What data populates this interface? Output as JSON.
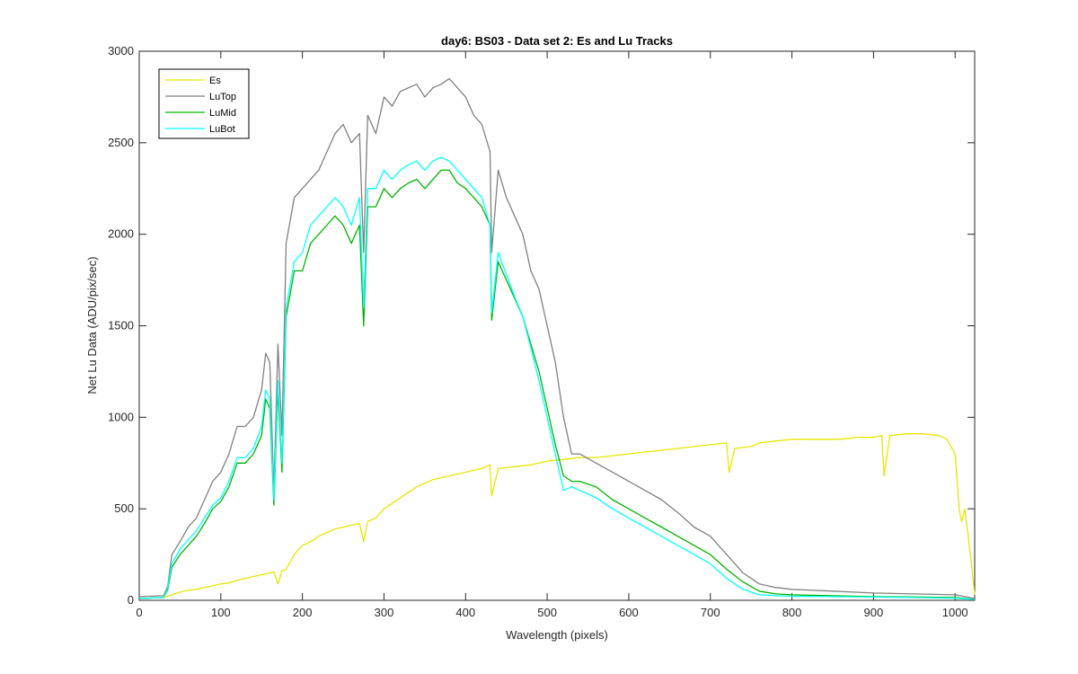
{
  "chart_data": {
    "type": "line",
    "title": "day6: BS03 - Data set 2: Es and Lu Tracks",
    "xlabel": "Wavelength (pixels)",
    "ylabel": "Net Lu Data (ADU/pix/sec)",
    "xlim": [
      0,
      1024
    ],
    "ylim": [
      0,
      3000
    ],
    "xticks": [
      0,
      100,
      200,
      300,
      400,
      500,
      600,
      700,
      800,
      900,
      1000
    ],
    "yticks": [
      0,
      500,
      1000,
      1500,
      2000,
      2500,
      3000
    ],
    "grid": false,
    "legend_position": "top-left",
    "series": [
      {
        "name": "Es",
        "color": "#e6e600",
        "x": [
          0,
          30,
          40,
          50,
          60,
          70,
          80,
          90,
          100,
          110,
          120,
          130,
          140,
          150,
          160,
          165,
          170,
          175,
          180,
          190,
          200,
          210,
          220,
          230,
          240,
          250,
          260,
          270,
          275,
          280,
          290,
          300,
          320,
          340,
          360,
          380,
          400,
          420,
          430,
          432,
          440,
          460,
          480,
          500,
          520,
          540,
          560,
          580,
          600,
          620,
          640,
          660,
          680,
          700,
          720,
          723,
          730,
          750,
          760,
          780,
          800,
          820,
          840,
          860,
          880,
          900,
          910,
          913,
          920,
          940,
          960,
          980,
          990,
          1000,
          1005,
          1008,
          1012,
          1020,
          1024
        ],
        "values": [
          10,
          15,
          30,
          45,
          55,
          60,
          70,
          80,
          90,
          95,
          110,
          120,
          130,
          140,
          150,
          155,
          90,
          160,
          170,
          250,
          300,
          320,
          350,
          370,
          390,
          400,
          410,
          420,
          320,
          430,
          450,
          500,
          560,
          620,
          660,
          680,
          700,
          720,
          740,
          570,
          720,
          730,
          740,
          760,
          770,
          780,
          780,
          790,
          800,
          810,
          820,
          830,
          840,
          850,
          860,
          700,
          830,
          840,
          860,
          870,
          880,
          880,
          880,
          880,
          890,
          890,
          900,
          680,
          900,
          910,
          910,
          900,
          880,
          800,
          500,
          430,
          500,
          200,
          30
        ]
      },
      {
        "name": "LuTop",
        "color": "#808080",
        "x": [
          0,
          30,
          35,
          40,
          50,
          60,
          70,
          80,
          90,
          100,
          110,
          120,
          130,
          140,
          150,
          155,
          160,
          165,
          170,
          175,
          180,
          190,
          200,
          210,
          220,
          230,
          240,
          250,
          260,
          270,
          275,
          280,
          290,
          300,
          310,
          320,
          330,
          340,
          350,
          360,
          370,
          380,
          390,
          400,
          410,
          420,
          430,
          432,
          440,
          450,
          460,
          470,
          480,
          490,
          500,
          510,
          520,
          530,
          540,
          560,
          580,
          600,
          620,
          640,
          660,
          680,
          700,
          720,
          740,
          760,
          780,
          800,
          850,
          900,
          950,
          1000,
          1024
        ],
        "values": [
          20,
          25,
          80,
          250,
          320,
          400,
          450,
          550,
          650,
          700,
          800,
          950,
          950,
          1000,
          1150,
          1350,
          1300,
          600,
          1400,
          900,
          1950,
          2200,
          2250,
          2300,
          2350,
          2450,
          2550,
          2600,
          2500,
          2550,
          1900,
          2650,
          2550,
          2750,
          2700,
          2780,
          2800,
          2820,
          2750,
          2800,
          2820,
          2850,
          2800,
          2750,
          2650,
          2600,
          2450,
          1900,
          2350,
          2200,
          2100,
          2000,
          1800,
          1700,
          1500,
          1300,
          1000,
          800,
          800,
          750,
          700,
          650,
          600,
          550,
          480,
          400,
          350,
          250,
          150,
          90,
          70,
          60,
          50,
          40,
          35,
          30,
          10
        ]
      },
      {
        "name": "LuMid",
        "color": "#00b300",
        "x": [
          0,
          30,
          35,
          40,
          50,
          60,
          70,
          80,
          90,
          100,
          110,
          120,
          130,
          140,
          150,
          155,
          160,
          165,
          170,
          175,
          180,
          190,
          200,
          210,
          220,
          230,
          240,
          250,
          260,
          270,
          275,
          280,
          290,
          300,
          310,
          320,
          330,
          340,
          350,
          360,
          370,
          380,
          390,
          400,
          410,
          420,
          430,
          432,
          440,
          450,
          460,
          470,
          480,
          490,
          500,
          510,
          520,
          530,
          540,
          560,
          580,
          600,
          620,
          640,
          660,
          680,
          700,
          720,
          740,
          760,
          780,
          800,
          850,
          900,
          950,
          1000,
          1024
        ],
        "values": [
          10,
          15,
          60,
          180,
          250,
          300,
          350,
          420,
          500,
          540,
          620,
          750,
          750,
          800,
          900,
          1100,
          1050,
          520,
          1150,
          700,
          1550,
          1800,
          1800,
          1950,
          2000,
          2050,
          2100,
          2050,
          1950,
          2050,
          1500,
          2150,
          2150,
          2250,
          2200,
          2250,
          2280,
          2300,
          2250,
          2300,
          2350,
          2350,
          2280,
          2250,
          2200,
          2150,
          2050,
          1530,
          1850,
          1750,
          1650,
          1550,
          1400,
          1250,
          1050,
          850,
          680,
          650,
          650,
          620,
          550,
          500,
          450,
          400,
          350,
          300,
          250,
          170,
          100,
          50,
          35,
          30,
          25,
          20,
          18,
          15,
          5
        ]
      },
      {
        "name": "LuBot",
        "color": "#00ffff",
        "x": [
          0,
          30,
          35,
          40,
          50,
          60,
          70,
          80,
          90,
          100,
          110,
          120,
          130,
          140,
          150,
          155,
          160,
          165,
          170,
          175,
          180,
          190,
          200,
          210,
          220,
          230,
          240,
          250,
          260,
          270,
          275,
          280,
          290,
          300,
          310,
          320,
          330,
          340,
          350,
          360,
          370,
          380,
          390,
          400,
          410,
          420,
          430,
          432,
          440,
          450,
          460,
          470,
          480,
          490,
          500,
          510,
          520,
          530,
          540,
          560,
          580,
          600,
          620,
          640,
          660,
          680,
          700,
          720,
          740,
          760,
          780,
          800,
          850,
          900,
          950,
          1000,
          1024
        ],
        "values": [
          10,
          15,
          70,
          200,
          280,
          330,
          380,
          450,
          520,
          560,
          650,
          780,
          780,
          830,
          950,
          1150,
          1100,
          550,
          1200,
          750,
          1600,
          1850,
          1900,
          2050,
          2100,
          2150,
          2200,
          2150,
          2050,
          2200,
          1600,
          2250,
          2250,
          2350,
          2300,
          2350,
          2380,
          2400,
          2350,
          2400,
          2420,
          2400,
          2350,
          2300,
          2250,
          2200,
          2050,
          1570,
          1900,
          1780,
          1660,
          1550,
          1380,
          1200,
          1000,
          800,
          600,
          620,
          600,
          560,
          500,
          450,
          400,
          350,
          300,
          250,
          200,
          120,
          60,
          30,
          25,
          22,
          20,
          18,
          15,
          12,
          5
        ]
      }
    ]
  }
}
